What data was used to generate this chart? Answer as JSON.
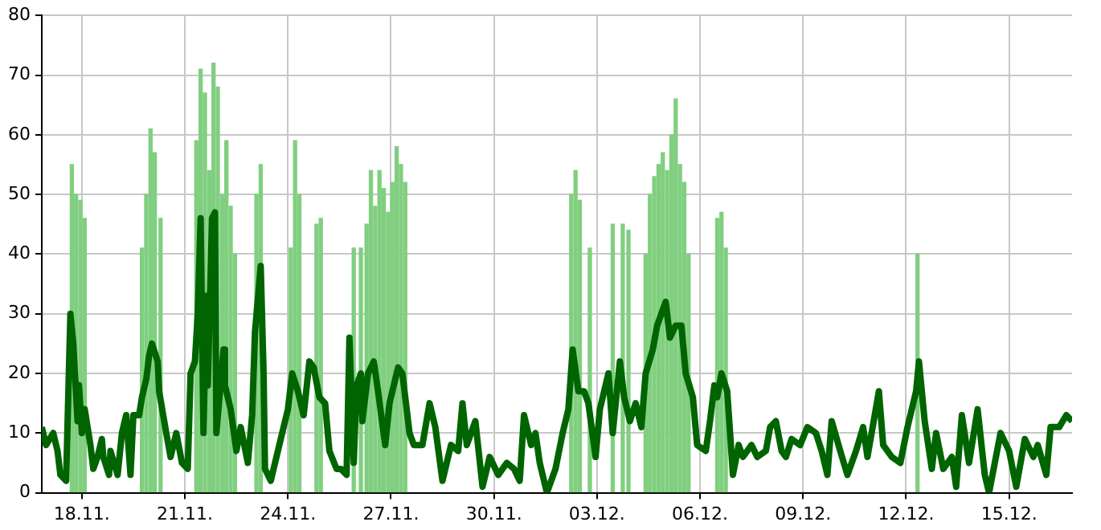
{
  "chart_data": {
    "type": "bar",
    "xlim": [
      "--11-16T20:00",
      "--12-16T20:00"
    ],
    "xticks": [
      {
        "value": "--11-18T00:00",
        "label": "18.11."
      },
      {
        "value": "--11-21T00:00",
        "label": "21.11."
      },
      {
        "value": "--11-24T00:00",
        "label": "24.11."
      },
      {
        "value": "--11-27T00:00",
        "label": "27.11."
      },
      {
        "value": "--11-30T00:00",
        "label": "30.11."
      },
      {
        "value": "--12-03T00:00",
        "label": "03.12."
      },
      {
        "value": "--12-06T00:00",
        "label": "06.12."
      },
      {
        "value": "--12-09T00:00",
        "label": "09.12."
      },
      {
        "value": "--12-12T00:00",
        "label": "12.12."
      },
      {
        "value": "--12-15T00:00",
        "label": "15.12."
      }
    ],
    "ylim": [
      0,
      80
    ],
    "yticks": [
      0,
      10,
      20,
      30,
      40,
      50,
      60,
      70,
      80
    ],
    "grid": true,
    "legend": false,
    "series": [
      {
        "color": "#80cf80",
        "x": [
          "--11-17T17:00",
          "--11-17T20:00",
          "--11-17T23:00",
          "--11-18T02:00",
          "--11-19T18:00",
          "--11-19T21:00",
          "--11-20T00:00",
          "--11-20T03:00",
          "--11-20T07:00",
          "--11-21T08:00",
          "--11-21T11:00",
          "--11-21T14:00",
          "--11-21T17:00",
          "--11-21T20:00",
          "--11-21T23:00",
          "--11-22T02:00",
          "--11-22T05:00",
          "--11-22T08:00",
          "--11-22T11:00",
          "--11-23T02:00",
          "--11-23T05:00",
          "--11-24T02:00",
          "--11-24T05:00",
          "--11-24T08:00",
          "--11-24T20:00",
          "--11-24T23:00",
          "--11-25T22:00",
          "--11-26T03:00",
          "--11-26T07:00",
          "--11-26T10:00",
          "--11-26T13:00",
          "--11-26T16:00",
          "--11-26T19:00",
          "--11-26T22:00",
          "--11-27T01:00",
          "--11-27T04:00",
          "--11-27T07:00",
          "--11-27T10:00",
          "--12-02T06:00",
          "--12-02T09:00",
          "--12-02T12:00",
          "--12-02T19:00",
          "--12-03T11:00",
          "--12-03T18:00",
          "--12-03T22:00",
          "--12-04T10:00",
          "--12-04T13:00",
          "--12-04T16:00",
          "--12-04T19:00",
          "--12-04T22:00",
          "--12-05T01:00",
          "--12-05T04:00",
          "--12-05T07:00",
          "--12-05T10:00",
          "--12-05T13:00",
          "--12-05T16:00",
          "--12-06T12:00",
          "--12-06T15:00",
          "--12-06T18:00",
          "--12-12T08:00"
        ],
        "values": [
          55,
          50,
          49,
          46,
          41,
          50,
          61,
          57,
          46,
          59,
          71,
          67,
          54,
          72,
          68,
          50,
          59,
          48,
          40,
          50,
          55,
          41,
          59,
          50,
          45,
          46,
          41,
          41,
          45,
          54,
          48,
          54,
          51,
          47,
          52,
          58,
          55,
          52,
          50,
          54,
          49,
          41,
          45,
          45,
          44,
          40,
          50,
          53,
          55,
          57,
          54,
          60,
          66,
          55,
          52,
          40,
          46,
          47,
          41,
          40
        ]
      },
      {
        "type": "line",
        "color": "#006400",
        "x": [
          "--11-16T20:00",
          "--11-16T23:00",
          "--11-17T04:00",
          "--11-17T07:00",
          "--11-17T09:00",
          "--11-17T13:00",
          "--11-17T15:00",
          "--11-17T16:00",
          "--11-17T18:00",
          "--11-17T21:00",
          "--11-17T22:00",
          "--11-18T00:00",
          "--11-18T02:00",
          "--11-18T06:00",
          "--11-18T08:00",
          "--11-18T11:00",
          "--11-18T14:00",
          "--11-18T15:00",
          "--11-18T19:00",
          "--11-18T20:00",
          "--11-19T01:00",
          "--11-19T04:00",
          "--11-19T07:00",
          "--11-19T10:00",
          "--11-19T12:00",
          "--11-19T16:00",
          "--11-19T18:00",
          "--11-19T21:00",
          "--11-19T23:00",
          "--11-20T01:00",
          "--11-20T05:00",
          "--11-20T06:00",
          "--11-20T11:00",
          "--11-20T14:00",
          "--11-20T18:00",
          "--11-20T22:00",
          "--11-21T02:00",
          "--11-21T04:00",
          "--11-21T07:00",
          "--11-21T09:00",
          "--11-21T11:00",
          "--11-21T13:00",
          "--11-21T15:00",
          "--11-21T16:00",
          "--11-21T19:00",
          "--11-21T21:00",
          "--11-21T22:00",
          "--11-22T03:00",
          "--11-22T04:00",
          "--11-22T08:00",
          "--11-22T12:00",
          "--11-22T15:00",
          "--11-22T20:00",
          "--11-22T23:00",
          "--11-23T01:00",
          "--11-23T05:00",
          "--11-23T07:00",
          "--11-23T08:00",
          "--11-23T12:00",
          "--11-23T16:00",
          "--11-23T19:00",
          "--11-24T00:00",
          "--11-24T03:00",
          "--11-24T07:00",
          "--11-24T11:00",
          "--11-24T15:00",
          "--11-24T18:00",
          "--11-24T22:00",
          "--11-25T02:00",
          "--11-25T05:00",
          "--11-25T10:00",
          "--11-25T13:00",
          "--11-25T17:00",
          "--11-25T19:00",
          "--11-25T22:00",
          "--11-26T00:00",
          "--11-26T03:00",
          "--11-26T04:00",
          "--11-26T08:00",
          "--11-26T12:00",
          "--11-26T15:00",
          "--11-26T20:00",
          "--11-26T23:00",
          "--11-27T05:00",
          "--11-27T08:00",
          "--11-27T13:00",
          "--11-27T16:00",
          "--11-27T22:00",
          "--11-28T03:00",
          "--11-28T07:00",
          "--11-28T12:00",
          "--11-28T18:00",
          "--11-28T23:00",
          "--11-29T02:00",
          "--11-29T05:00",
          "--11-29T11:00",
          "--11-29T16:00",
          "--11-29T21:00",
          "--11-30T03:00",
          "--11-30T09:00",
          "--11-30T14:00",
          "--11-30T18:00",
          "--11-30T21:00",
          "--12-01T02:00",
          "--12-01T05:00",
          "--12-01T08:00",
          "--12-01T13:00",
          "--12-01T19:00",
          "--12-02T00:00",
          "--12-02T04:00",
          "--12-02T07:00",
          "--12-02T11:00",
          "--12-02T15:00",
          "--12-02T18:00",
          "--12-02T23:00",
          "--12-03T02:00",
          "--12-03T08:00",
          "--12-03T11:00",
          "--12-03T16:00",
          "--12-03T19:00",
          "--12-03T23:00",
          "--12-04T03:00",
          "--12-04T07:00",
          "--12-04T10:00",
          "--12-04T15:00",
          "--12-04T18:00",
          "--12-05T00:00",
          "--12-05T03:00",
          "--12-05T07:00",
          "--12-05T11:00",
          "--12-05T14:00",
          "--12-05T19:00",
          "--12-05T22:00",
          "--12-06T04:00",
          "--12-06T07:00",
          "--12-06T10:00",
          "--12-06T12:00",
          "--12-06T15:00",
          "--12-06T19:00",
          "--12-06T23:00",
          "--12-07T03:00",
          "--12-07T06:00",
          "--12-07T12:00",
          "--12-07T16:00",
          "--12-07T22:00",
          "--12-08T01:00",
          "--12-08T05:00",
          "--12-08T09:00",
          "--12-08T12:00",
          "--12-08T16:00",
          "--12-08T22:00",
          "--12-09T03:00",
          "--12-09T09:00",
          "--12-09T13:00",
          "--12-09T17:00",
          "--12-09T20:00",
          "--12-10T02:00",
          "--12-10T07:00",
          "--12-10T13:00",
          "--12-10T18:00",
          "--12-10T21:00",
          "--12-11T05:00",
          "--12-11T08:00",
          "--12-11T14:00",
          "--12-11T20:00",
          "--12-12T01:00",
          "--12-12T07:00",
          "--12-12T09:00",
          "--12-12T13:00",
          "--12-12T18:00",
          "--12-12T21:00",
          "--12-13T02:00",
          "--12-13T08:00",
          "--12-13T11:00",
          "--12-13T15:00",
          "--12-13T20:00",
          "--12-14T02:00",
          "--12-14T07:00",
          "--12-14T10:00",
          "--12-14T18:00",
          "--12-15T00:00",
          "--12-15T05:00",
          "--12-15T11:00",
          "--12-15T17:00",
          "--12-15T20:00",
          "--12-16T02:00",
          "--12-16T05:00",
          "--12-16T11:00",
          "--12-16T16:00",
          "--12-16T20:00"
        ],
        "values": [
          11,
          8,
          10,
          7,
          3,
          2,
          21,
          30,
          25,
          12,
          18,
          10,
          14,
          8,
          4,
          6,
          9,
          6,
          3,
          7,
          3,
          10,
          13,
          3,
          13,
          13,
          16,
          19,
          23,
          25,
          22,
          17,
          10,
          6,
          10,
          5,
          4,
          20,
          22,
          30,
          46,
          10,
          33,
          18,
          46,
          47,
          10,
          24,
          18,
          14,
          7,
          11,
          5,
          13,
          27,
          38,
          20,
          4,
          2,
          6,
          9,
          14,
          20,
          17,
          13,
          22,
          21,
          16,
          15,
          7,
          4,
          4,
          3,
          26,
          5,
          18,
          20,
          12,
          20,
          22,
          17,
          8,
          15,
          21,
          20,
          10,
          8,
          8,
          15,
          11,
          2,
          8,
          7,
          15,
          8,
          12,
          1,
          6,
          3,
          5,
          4,
          2,
          13,
          8,
          10,
          5,
          0,
          4,
          10,
          14,
          24,
          17,
          17,
          15,
          6,
          14,
          20,
          10,
          22,
          16,
          12,
          15,
          11,
          20,
          24,
          28,
          32,
          26,
          28,
          28,
          20,
          16,
          8,
          7,
          12,
          18,
          16,
          20,
          17,
          3,
          8,
          6,
          8,
          6,
          7,
          11,
          12,
          7,
          6,
          9,
          8,
          11,
          10,
          7,
          3,
          12,
          7,
          3,
          7,
          11,
          6,
          17,
          8,
          6,
          5,
          11,
          17,
          22,
          12,
          4,
          10,
          4,
          6,
          1,
          13,
          5,
          14,
          3,
          0,
          10,
          7,
          1,
          9,
          6,
          8,
          3,
          11,
          11,
          13,
          12
        ]
      }
    ]
  }
}
